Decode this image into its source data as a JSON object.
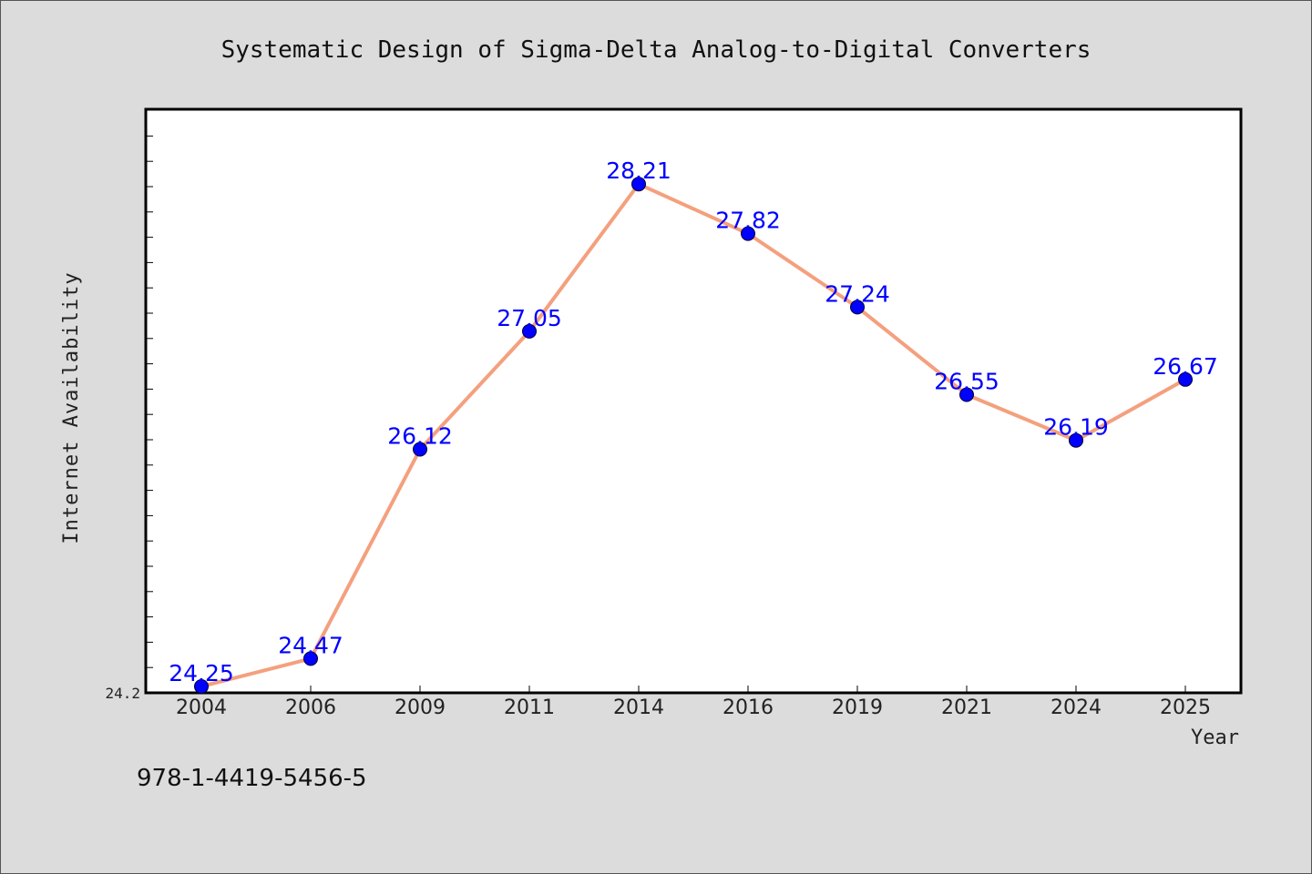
{
  "chart_data": {
    "type": "line",
    "title": "Systematic Design of Sigma-Delta Analog-to-Digital Converters",
    "xlabel": "Year",
    "ylabel": "Internet Availability",
    "categories": [
      "2004",
      "2006",
      "2009",
      "2011",
      "2014",
      "2016",
      "2019",
      "2021",
      "2024",
      "2025"
    ],
    "series": [
      {
        "values": [
          24.25,
          24.47,
          26.12,
          27.05,
          28.21,
          27.82,
          27.24,
          26.55,
          26.19,
          26.67
        ],
        "line_color": "#f4a07e",
        "marker_color": "#0000ff"
      }
    ],
    "data_labels": [
      "24.25",
      "24.47",
      "26.12",
      "27.05",
      "28.21",
      "27.82",
      "27.24",
      "26.55",
      "26.19",
      "26.67"
    ],
    "data_label_color": "#0000ff",
    "ylim": [
      24.2,
      28.8
    ],
    "y_tick_labels": [
      "24.2"
    ],
    "grid": false,
    "legend": "none"
  },
  "footer": {
    "isbn": "978-1-4419-5456-5"
  },
  "colors": {
    "background": "#dcdcdc",
    "plot_background": "#ffffff",
    "axis": "#000000"
  }
}
